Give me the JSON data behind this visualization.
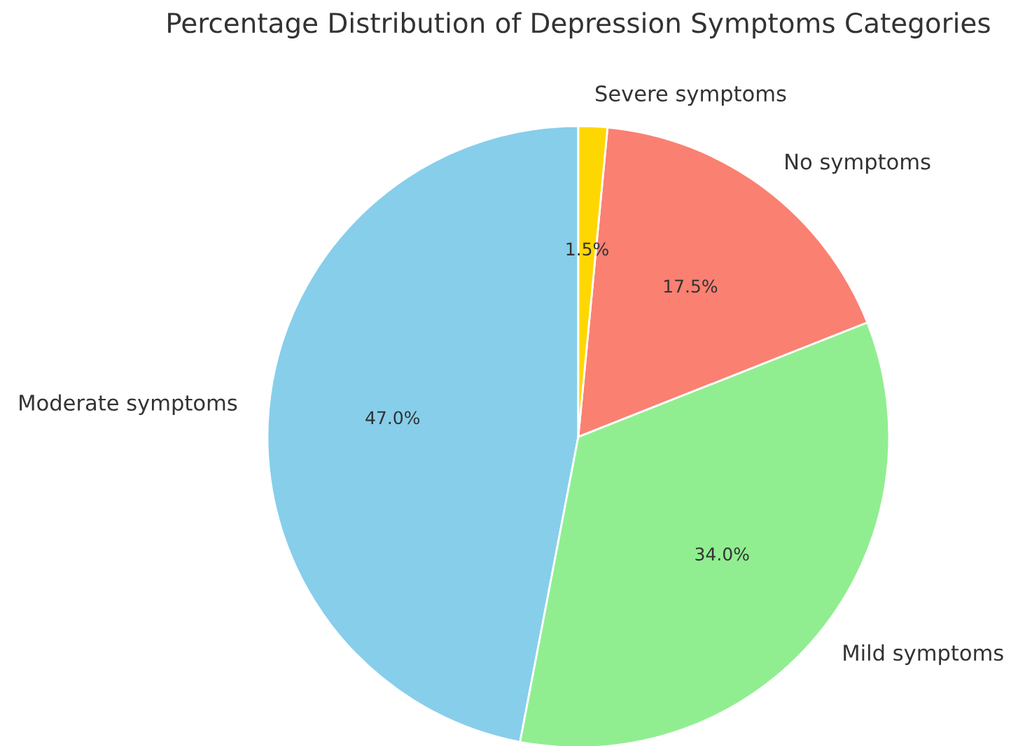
{
  "chart_data": {
    "type": "pie",
    "title": "Percentage Distribution of Depression Symptoms Categories",
    "categories": [
      "Moderate symptoms",
      "Mild symptoms",
      "No symptoms",
      "Severe symptoms"
    ],
    "values": [
      47.0,
      34.0,
      17.5,
      1.5
    ],
    "value_labels": [
      "47.0%",
      "34.0%",
      "17.5%",
      "1.5%"
    ],
    "colors": [
      "#87ceeb",
      "#90ee90",
      "#fa8072",
      "#ffd700"
    ],
    "legend": false
  }
}
